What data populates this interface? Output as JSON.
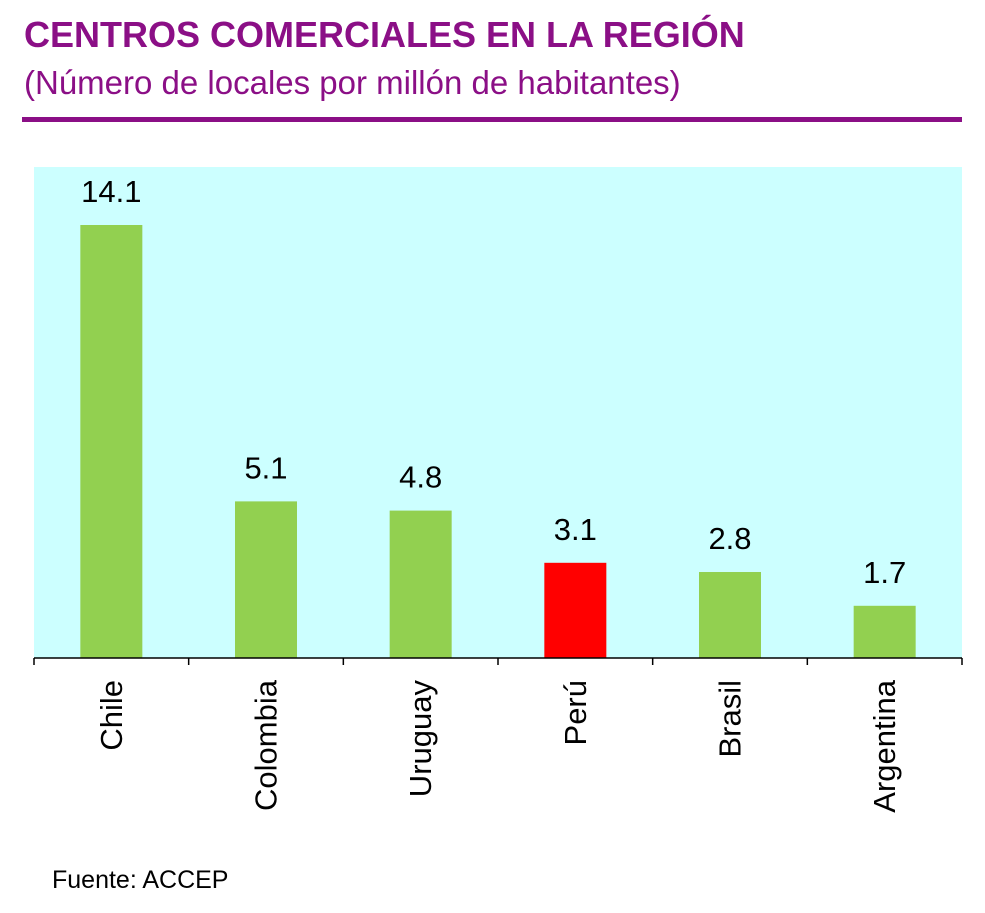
{
  "header": {
    "title": "CENTROS COMERCIALES EN LA REGIÓN",
    "subtitle": "(Número de locales por millón de habitantes)"
  },
  "footer": {
    "source": "Fuente: ACCEP"
  },
  "colors": {
    "accent": "#8b0f86",
    "plot_background": "#ccffff",
    "bar_default": "#92d050",
    "bar_highlight": "#ff0000"
  },
  "chart_data": {
    "type": "bar",
    "title": "CENTROS COMERCIALES EN LA REGIÓN",
    "subtitle": "(Número de locales por millón de habitantes)",
    "categories": [
      "Chile",
      "Colombia",
      "Uruguay",
      "Perú",
      "Brasil",
      "Argentina"
    ],
    "values": [
      14.1,
      5.1,
      4.8,
      3.1,
      2.8,
      1.7
    ],
    "highlight": "Perú",
    "data_labels": [
      "14.1",
      "5.1",
      "4.8",
      "3.1",
      "2.8",
      "1.7"
    ],
    "xlabel": "",
    "ylabel": "",
    "ylim": [
      0,
      16
    ],
    "grid": false,
    "legend": false,
    "category_label_orientation": "vertical"
  }
}
